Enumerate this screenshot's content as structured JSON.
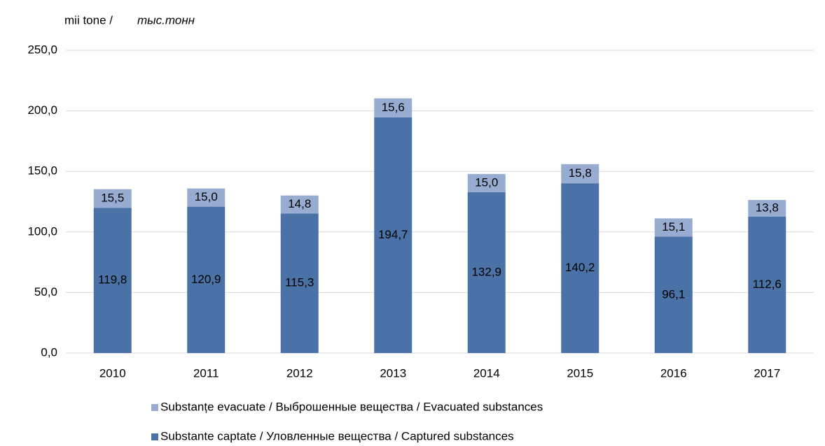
{
  "chart_data": {
    "type": "stacked_bar",
    "y_label": "mii tone /",
    "y_label_italic": "тыс.тонн",
    "categories": [
      "2010",
      "2011",
      "2012",
      "2013",
      "2014",
      "2015",
      "2016",
      "2017"
    ],
    "series": [
      {
        "name": "Substante captate / Уловленные вещества / Captured substances",
        "color": "#4a72a6",
        "values": [
          119.8,
          120.9,
          115.3,
          194.7,
          132.9,
          140.2,
          96.1,
          112.6
        ],
        "value_labels": [
          "119,8",
          "120,9",
          "115,3",
          "194,7",
          "132,9",
          "140,2",
          "96,1",
          "112,6"
        ]
      },
      {
        "name": "Substanțe evacuate / Выброшенные вещества / Evacuated substances",
        "color": "#98abd1",
        "values": [
          15.5,
          15.0,
          14.8,
          15.6,
          15.0,
          15.8,
          15.1,
          13.8
        ],
        "value_labels": [
          "15,5",
          "15,0",
          "14,8",
          "15,6",
          "15,0",
          "15,8",
          "15,1",
          "13,8"
        ]
      }
    ],
    "ylim": [
      0,
      250
    ],
    "yticks": [
      {
        "value": 0,
        "label": "0,0"
      },
      {
        "value": 50,
        "label": "50,0"
      },
      {
        "value": 100,
        "label": "100,0"
      },
      {
        "value": 150,
        "label": "150,0"
      },
      {
        "value": 200,
        "label": "200,0"
      },
      {
        "value": 250,
        "label": "250,0"
      }
    ],
    "grid": true,
    "legend": "bottom"
  }
}
